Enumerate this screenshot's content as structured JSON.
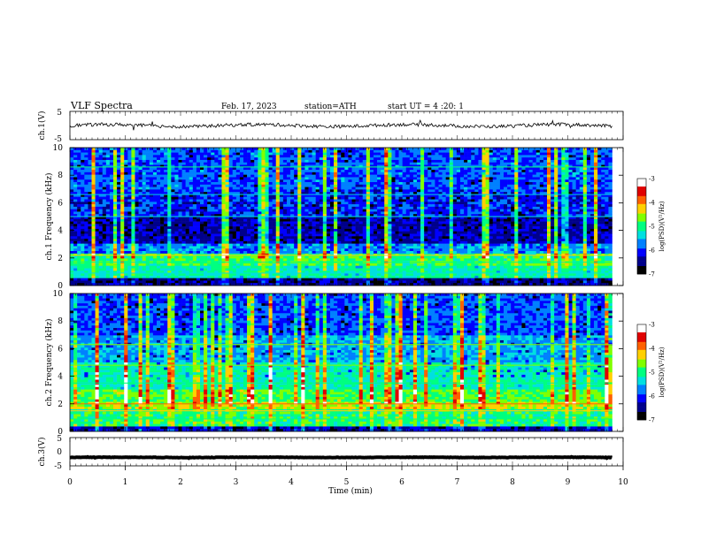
{
  "header": {
    "title": "VLF Spectra",
    "date": "Feb. 17, 2023",
    "station": "station=ATH",
    "start": "start UT =  4 :20: 1"
  },
  "chart_data": [
    {
      "type": "line",
      "name": "ch1-waveform",
      "ylabel": "ch.1(V)",
      "ylim": [
        -5,
        5
      ],
      "yticks": [
        "5",
        "-5"
      ],
      "xlim": [
        0,
        10
      ],
      "trace_level": 0
    },
    {
      "type": "heatmap",
      "name": "ch1-spectrogram",
      "ylabel": "ch.1  Frequency  (kHz)",
      "ylim": [
        0,
        10
      ],
      "yticks": [
        "0",
        "2",
        "4",
        "6",
        "8",
        "10"
      ],
      "xlim": [
        0,
        10
      ],
      "data_end_min": 9.8,
      "colorbar": {
        "label": "log(PSD)(V²/Hz)",
        "range": [
          -7,
          -3
        ],
        "ticks": [
          "-3",
          "-4",
          "-5",
          "-6",
          "-7"
        ],
        "colors": [
          "#000000",
          "#00008b",
          "#0000ff",
          "#0080ff",
          "#00e0e0",
          "#00ff80",
          "#80ff00",
          "#ffd000",
          "#ff6000",
          "#e00000",
          "#ffffff"
        ]
      }
    },
    {
      "type": "heatmap",
      "name": "ch2-spectrogram",
      "ylabel": "ch.2  Frequency  (kHz)",
      "ylim": [
        0,
        10
      ],
      "yticks": [
        "0",
        "2",
        "4",
        "6",
        "8",
        "10"
      ],
      "xlim": [
        0,
        10
      ],
      "data_end_min": 9.8,
      "colorbar": {
        "label": "log(PSD)(V²/Hz)",
        "range": [
          -7,
          -3
        ],
        "ticks": [
          "-3",
          "-4",
          "-5",
          "-6",
          "-7"
        ]
      }
    },
    {
      "type": "line",
      "name": "ch3-waveform",
      "ylabel": "ch.3(V)",
      "ylim": [
        -5,
        5
      ],
      "yticks": [
        "5",
        "0",
        "-5"
      ],
      "xlim": [
        0,
        10
      ],
      "trace_level": -2
    }
  ],
  "xaxis": {
    "label": "Time  (min)",
    "ticks": [
      "0",
      "1",
      "2",
      "3",
      "4",
      "5",
      "6",
      "7",
      "8",
      "9",
      "10"
    ],
    "range": [
      0,
      10
    ]
  }
}
